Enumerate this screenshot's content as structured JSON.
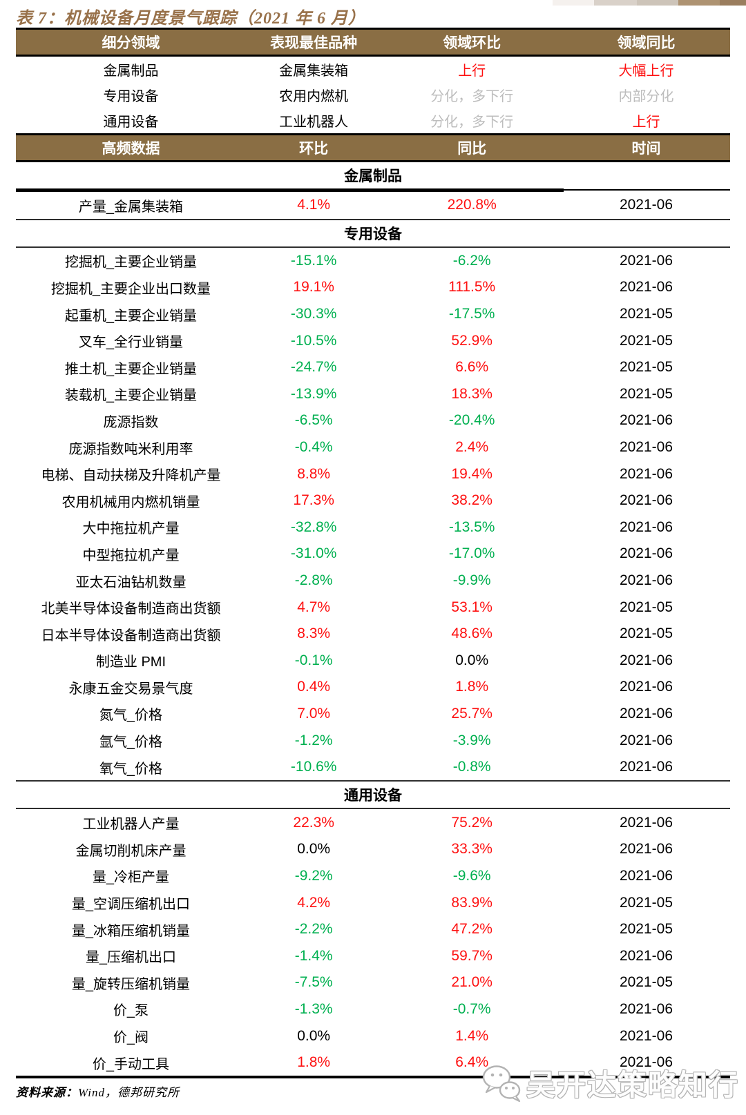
{
  "title": "表 7：机械设备月度景气跟踪（2021 年 6 月）",
  "colors": {
    "band_brown": "#8a6e44",
    "title_brown": "#98714a",
    "up_red": "#fe1010",
    "down_green": "#00b050",
    "neutral_gray": "#bdbdbd",
    "text_black": "#000000"
  },
  "summary": {
    "headers": [
      "细分领域",
      "表现最佳品种",
      "领域环比",
      "领域同比"
    ],
    "rows": [
      {
        "sector": "金属制品",
        "best": "金属集装箱",
        "mom": "上行",
        "mom_color": "red",
        "yoy": "大幅上行",
        "yoy_color": "red"
      },
      {
        "sector": "专用设备",
        "best": "农用内燃机",
        "mom": "分化，多下行",
        "mom_color": "gray",
        "yoy": "内部分化",
        "yoy_color": "gray"
      },
      {
        "sector": "通用设备",
        "best": "工业机器人",
        "mom": "分化，多下行",
        "mom_color": "gray",
        "yoy": "上行",
        "yoy_color": "red"
      }
    ]
  },
  "detail": {
    "headers": [
      "高频数据",
      "环比",
      "同比",
      "时间"
    ],
    "sections": [
      {
        "name": "金属制品",
        "rows": [
          {
            "name": "产量_金属集装箱",
            "mom": "4.1%",
            "mom_color": "red",
            "yoy": "220.8%",
            "yoy_color": "red",
            "date": "2021-06"
          }
        ]
      },
      {
        "name": "专用设备",
        "rows": [
          {
            "name": "挖掘机_主要企业销量",
            "mom": "-15.1%",
            "mom_color": "green",
            "yoy": "-6.2%",
            "yoy_color": "green",
            "date": "2021-06"
          },
          {
            "name": "挖掘机_主要企业出口数量",
            "mom": "19.1%",
            "mom_color": "red",
            "yoy": "111.5%",
            "yoy_color": "red",
            "date": "2021-06"
          },
          {
            "name": "起重机_主要企业销量",
            "mom": "-30.3%",
            "mom_color": "green",
            "yoy": "-17.5%",
            "yoy_color": "green",
            "date": "2021-05"
          },
          {
            "name": "叉车_全行业销量",
            "mom": "-10.5%",
            "mom_color": "green",
            "yoy": "52.9%",
            "yoy_color": "red",
            "date": "2021-05"
          },
          {
            "name": "推土机_主要企业销量",
            "mom": "-24.7%",
            "mom_color": "green",
            "yoy": "6.6%",
            "yoy_color": "red",
            "date": "2021-05"
          },
          {
            "name": "装载机_主要企业销量",
            "mom": "-13.9%",
            "mom_color": "green",
            "yoy": "18.3%",
            "yoy_color": "red",
            "date": "2021-05"
          },
          {
            "name": "庞源指数",
            "mom": "-6.5%",
            "mom_color": "green",
            "yoy": "-20.4%",
            "yoy_color": "green",
            "date": "2021-06"
          },
          {
            "name": "庞源指数吨米利用率",
            "mom": "-0.4%",
            "mom_color": "green",
            "yoy": "2.4%",
            "yoy_color": "red",
            "date": "2021-06"
          },
          {
            "name": "电梯、自动扶梯及升降机产量",
            "mom": "8.8%",
            "mom_color": "red",
            "yoy": "19.4%",
            "yoy_color": "red",
            "date": "2021-06"
          },
          {
            "name": "农用机械用内燃机销量",
            "mom": "17.3%",
            "mom_color": "red",
            "yoy": "38.2%",
            "yoy_color": "red",
            "date": "2021-06"
          },
          {
            "name": "大中拖拉机产量",
            "mom": "-32.8%",
            "mom_color": "green",
            "yoy": "-13.5%",
            "yoy_color": "green",
            "date": "2021-06"
          },
          {
            "name": "中型拖拉机产量",
            "mom": "-31.0%",
            "mom_color": "green",
            "yoy": "-17.0%",
            "yoy_color": "green",
            "date": "2021-06"
          },
          {
            "name": "亚太石油钻机数量",
            "mom": "-2.8%",
            "mom_color": "green",
            "yoy": "-9.9%",
            "yoy_color": "green",
            "date": "2021-06"
          },
          {
            "name": "北美半导体设备制造商出货额",
            "mom": "4.7%",
            "mom_color": "red",
            "yoy": "53.1%",
            "yoy_color": "red",
            "date": "2021-05"
          },
          {
            "name": "日本半导体设备制造商出货额",
            "mom": "8.3%",
            "mom_color": "red",
            "yoy": "48.6%",
            "yoy_color": "red",
            "date": "2021-05"
          },
          {
            "name": "制造业 PMI",
            "mom": "-0.1%",
            "mom_color": "green",
            "yoy": "0.0%",
            "yoy_color": "black",
            "date": "2021-06"
          },
          {
            "name": "永康五金交易景气度",
            "mom": "0.4%",
            "mom_color": "red",
            "yoy": "1.8%",
            "yoy_color": "red",
            "date": "2021-06"
          },
          {
            "name": "氮气_价格",
            "mom": "7.0%",
            "mom_color": "red",
            "yoy": "25.7%",
            "yoy_color": "red",
            "date": "2021-06"
          },
          {
            "name": "氩气_价格",
            "mom": "-1.2%",
            "mom_color": "green",
            "yoy": "-3.9%",
            "yoy_color": "green",
            "date": "2021-06"
          },
          {
            "name": "氧气_价格",
            "mom": "-10.6%",
            "mom_color": "green",
            "yoy": "-0.8%",
            "yoy_color": "green",
            "date": "2021-06"
          }
        ]
      },
      {
        "name": "通用设备",
        "rows": [
          {
            "name": "工业机器人产量",
            "mom": "22.3%",
            "mom_color": "red",
            "yoy": "75.2%",
            "yoy_color": "red",
            "date": "2021-06"
          },
          {
            "name": "金属切削机床产量",
            "mom": "0.0%",
            "mom_color": "black",
            "yoy": "33.3%",
            "yoy_color": "red",
            "date": "2021-06"
          },
          {
            "name": "量_冷柜产量",
            "mom": "-9.2%",
            "mom_color": "green",
            "yoy": "-9.6%",
            "yoy_color": "green",
            "date": "2021-06"
          },
          {
            "name": "量_空调压缩机出口",
            "mom": "4.2%",
            "mom_color": "red",
            "yoy": "83.9%",
            "yoy_color": "red",
            "date": "2021-05"
          },
          {
            "name": "量_冰箱压缩机销量",
            "mom": "-2.2%",
            "mom_color": "green",
            "yoy": "47.2%",
            "yoy_color": "red",
            "date": "2021-05"
          },
          {
            "name": "量_压缩机出口",
            "mom": "-1.4%",
            "mom_color": "green",
            "yoy": "59.7%",
            "yoy_color": "red",
            "date": "2021-06"
          },
          {
            "name": "量_旋转压缩机销量",
            "mom": "-7.5%",
            "mom_color": "green",
            "yoy": "21.0%",
            "yoy_color": "red",
            "date": "2021-05"
          },
          {
            "name": "价_泵",
            "mom": "-1.3%",
            "mom_color": "green",
            "yoy": "-0.7%",
            "yoy_color": "green",
            "date": "2021-06"
          },
          {
            "name": "价_阀",
            "mom": "0.0%",
            "mom_color": "black",
            "yoy": "1.4%",
            "yoy_color": "red",
            "date": "2021-06"
          },
          {
            "name": "价_手动工具",
            "mom": "1.8%",
            "mom_color": "red",
            "yoy": "6.4%",
            "yoy_color": "red",
            "date": "2021-06"
          }
        ]
      }
    ]
  },
  "footer": {
    "label": "资料来源：",
    "text": "Wind，德邦研究所"
  },
  "watermark": {
    "text": "吴开达策略知行",
    "icon": "wechat-logo"
  }
}
